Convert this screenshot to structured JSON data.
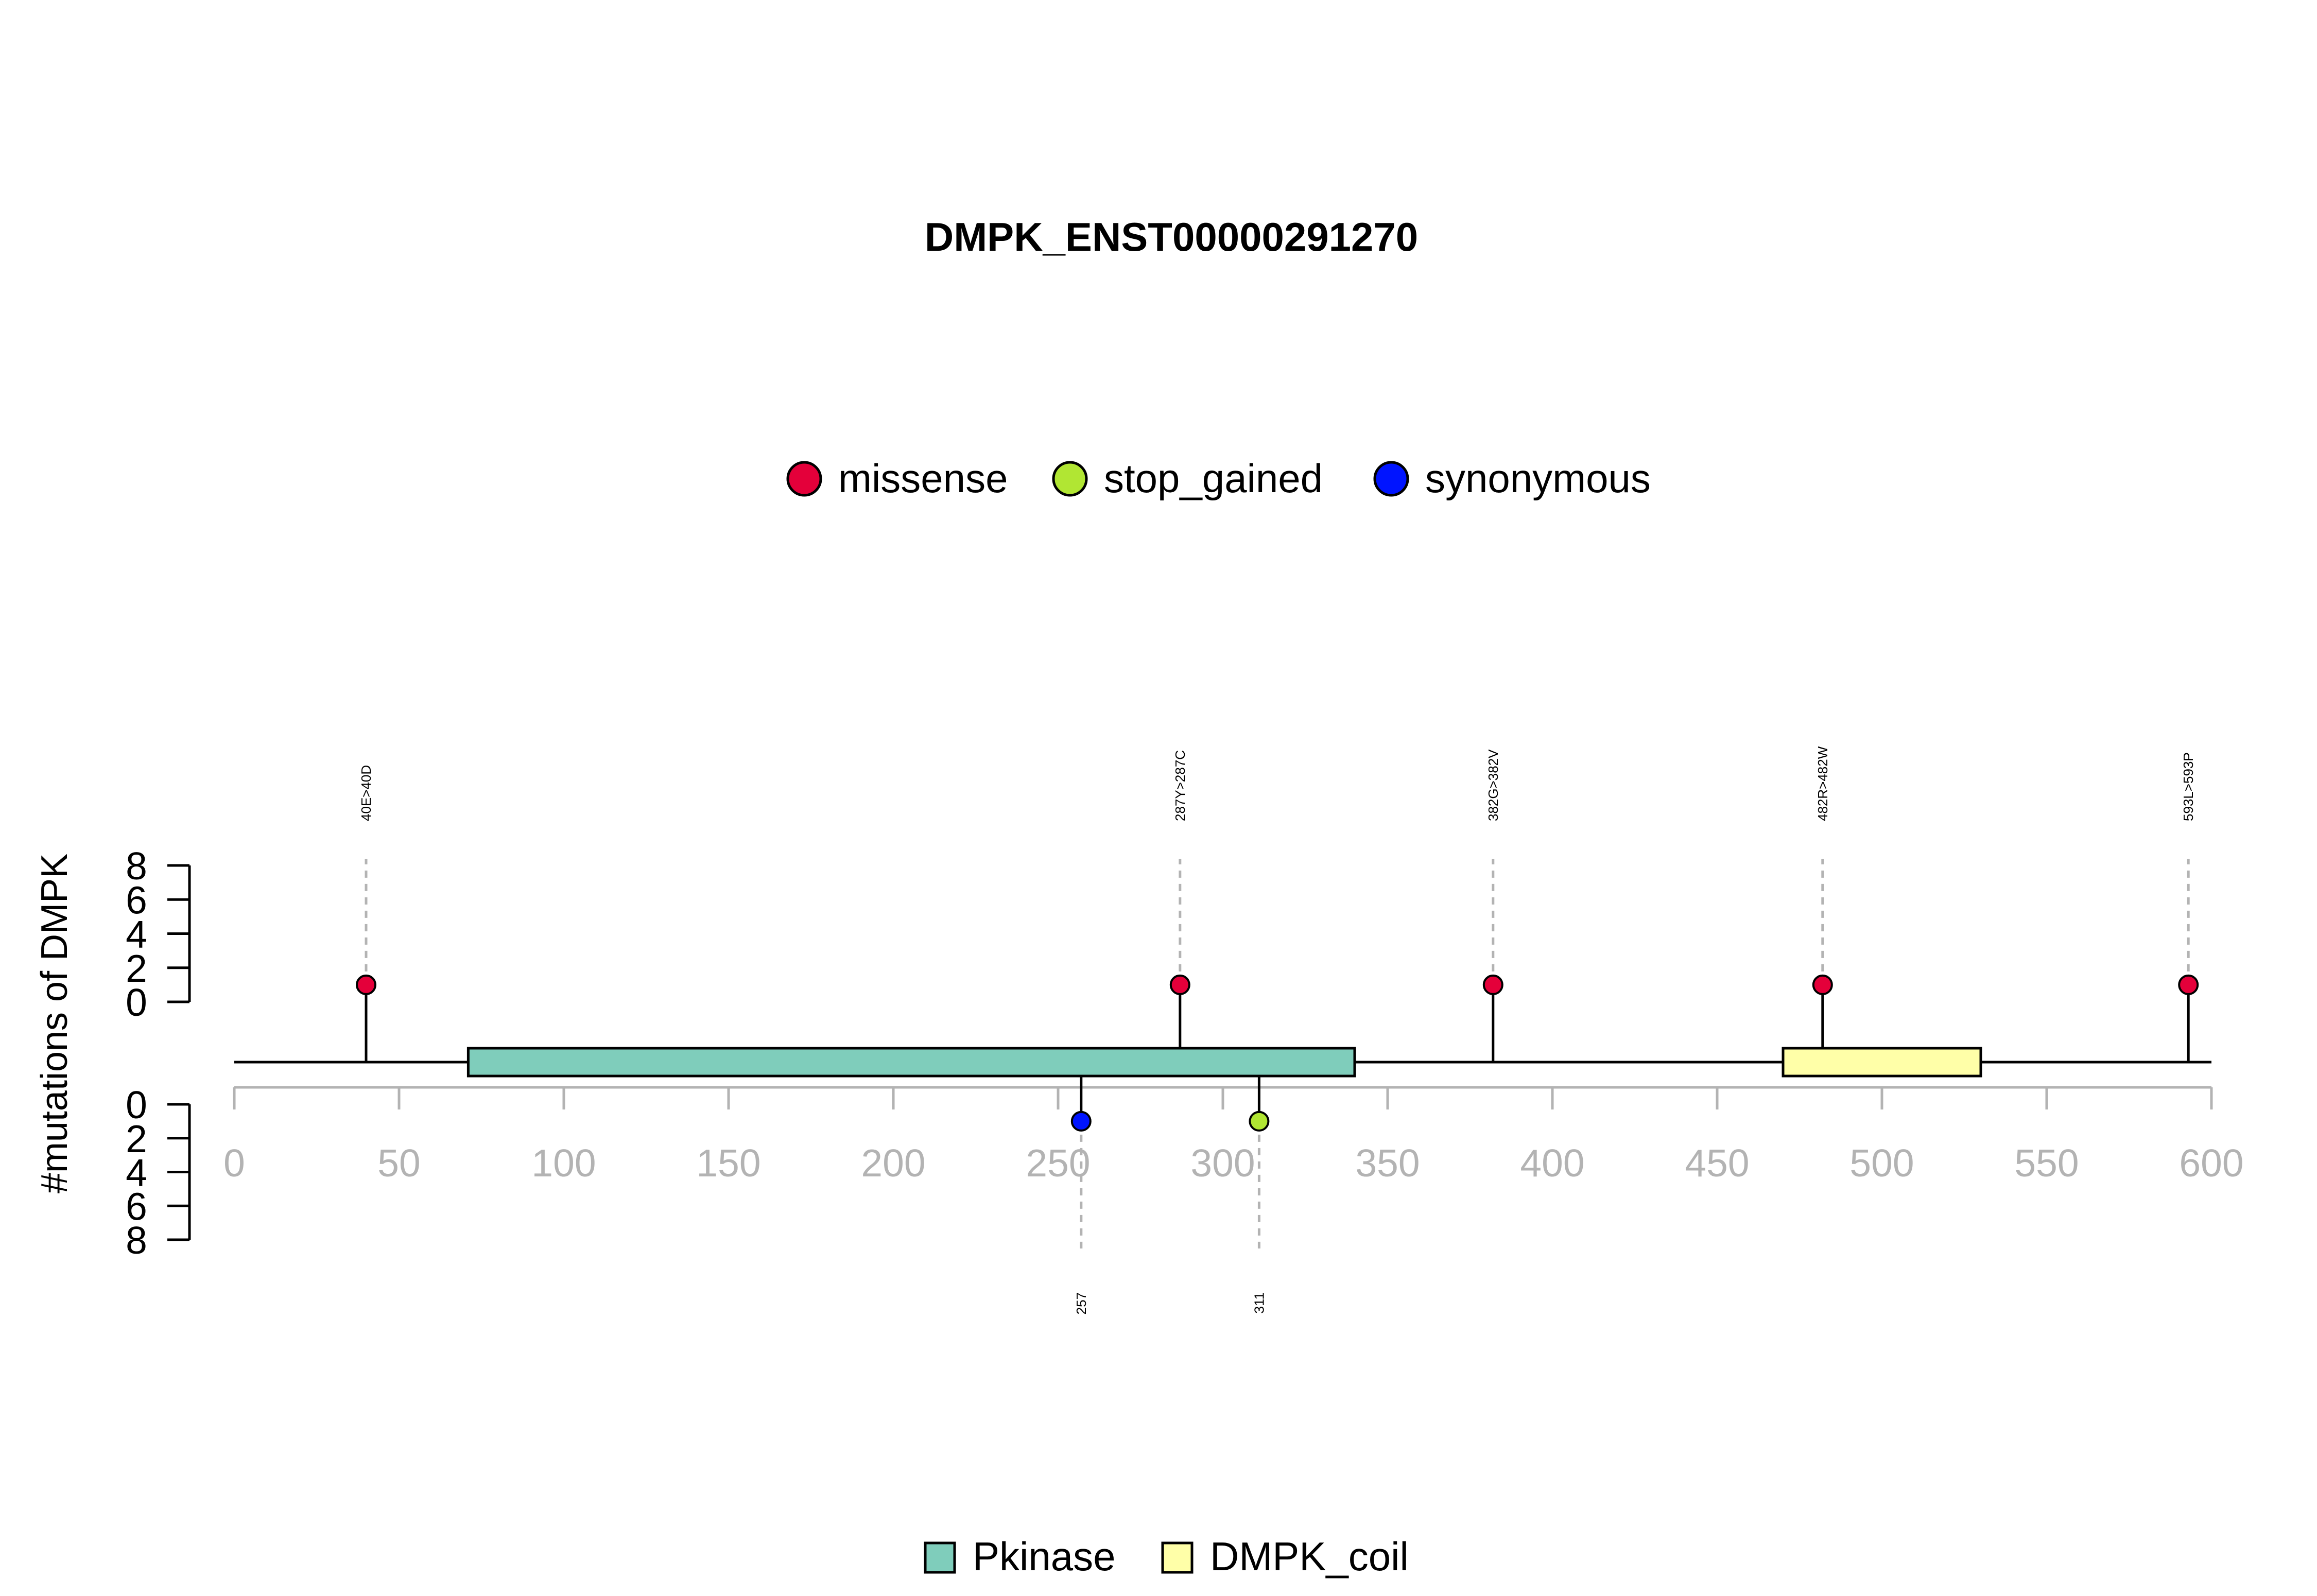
{
  "chart_data": {
    "type": "lollipop",
    "title": "DMPK_ENST00000291270",
    "ylabel": "#mutations of DMPK",
    "xlim": [
      0,
      600
    ],
    "x_ticks": [
      0,
      50,
      100,
      150,
      200,
      250,
      300,
      350,
      400,
      450,
      500,
      550,
      600
    ],
    "ylim_upper": [
      0,
      8
    ],
    "ylim_lower": [
      0,
      8
    ],
    "y_ticks": [
      0,
      2,
      4,
      6,
      8
    ],
    "mutation_legend": [
      {
        "name": "missense",
        "color": "#E4003A"
      },
      {
        "name": "stop_gained",
        "color": "#B1E633"
      },
      {
        "name": "synonymous",
        "color": "#0014FF"
      }
    ],
    "mutations_upper": [
      {
        "position": 40,
        "label": "40E>40D",
        "type": "missense",
        "count": 1
      },
      {
        "position": 287,
        "label": "287Y>287C",
        "type": "missense",
        "count": 1
      },
      {
        "position": 382,
        "label": "382G>382V",
        "type": "missense",
        "count": 1
      },
      {
        "position": 482,
        "label": "482R>482W",
        "type": "missense",
        "count": 1
      },
      {
        "position": 593,
        "label": "593L>593P",
        "type": "missense",
        "count": 1
      }
    ],
    "mutations_lower": [
      {
        "position": 257,
        "label": "257",
        "type": "synonymous",
        "count": 1
      },
      {
        "position": 311,
        "label": "311",
        "type": "stop_gained",
        "count": 1
      }
    ],
    "domains": [
      {
        "name": "Pkinase",
        "start": 71,
        "end": 340,
        "color": "#7FCDBB"
      },
      {
        "name": "DMPK_coil",
        "start": 470,
        "end": 530,
        "color": "#FFFFA8"
      }
    ],
    "axis_color": "#B3B3B3"
  }
}
